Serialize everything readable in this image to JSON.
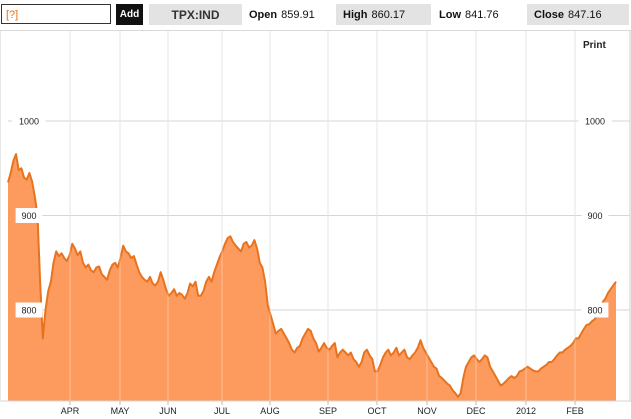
{
  "toolbar": {
    "search_value": "[?]",
    "add_label": "Add",
    "ticker": "TPX:IND",
    "open_label": "Open",
    "open_value": "859.91",
    "high_label": "High",
    "high_value": "860.17",
    "low_label": "Low",
    "low_value": "841.76",
    "close_label": "Close",
    "close_value": "847.16"
  },
  "print_label": "Print",
  "colors": {
    "line": "#e8731f",
    "fill": "#fd9a5e",
    "grid": "#d6d6d6"
  },
  "chart_data": {
    "type": "area",
    "ylim": [
      700,
      1100
    ],
    "y_ticks": [
      1000,
      900,
      800
    ],
    "tick_labels_left": [
      "1000",
      "900",
      "800"
    ],
    "tick_labels_right": [
      "1000",
      "900",
      "800"
    ],
    "x_month_labels": [
      "APR",
      "MAY",
      "JUN",
      "JUL",
      "AUG",
      "SEP",
      "OCT",
      "NOV",
      "DEC",
      "2012",
      "FEB"
    ],
    "grid": true,
    "series": [
      {
        "values": [
          935,
          945,
          958,
          965,
          948,
          950,
          940,
          938,
          945,
          936,
          920,
          900,
          830,
          770,
          800,
          820,
          830,
          850,
          862,
          857,
          860,
          855,
          852,
          858,
          870,
          865,
          858,
          862,
          850,
          845,
          848,
          842,
          840,
          845,
          846,
          838,
          835,
          832,
          842,
          848,
          850,
          845,
          855,
          868,
          862,
          860,
          855,
          857,
          848,
          840,
          835,
          832,
          830,
          835,
          828,
          826,
          830,
          840,
          832,
          822,
          815,
          818,
          822,
          815,
          818,
          816,
          812,
          818,
          828,
          825,
          830,
          815,
          815,
          820,
          830,
          835,
          830,
          840,
          848,
          856,
          862,
          870,
          876,
          878,
          872,
          868,
          865,
          862,
          870,
          872,
          866,
          868,
          874,
          865,
          850,
          845,
          830,
          805,
          795,
          785,
          775,
          778,
          780,
          775,
          770,
          765,
          758,
          755,
          760,
          762,
          770,
          775,
          780,
          778,
          770,
          765,
          756,
          760,
          765,
          760,
          758,
          762,
          765,
          750,
          755,
          758,
          755,
          752,
          755,
          748,
          745,
          740,
          745,
          755,
          758,
          752,
          748,
          735,
          735,
          742,
          750,
          755,
          758,
          752,
          755,
          760,
          752,
          755,
          758,
          750,
          748,
          752,
          755,
          760,
          768,
          760,
          755,
          750,
          745,
          740,
          738,
          730,
          728,
          725,
          722,
          720,
          715,
          712,
          708,
          712,
          728,
          740,
          745,
          750,
          752,
          748,
          745,
          748,
          752,
          750,
          740,
          735,
          730,
          725,
          720,
          722,
          725,
          728,
          730,
          728,
          730,
          735,
          736,
          738,
          740,
          738,
          736,
          735,
          735,
          738,
          740,
          742,
          745,
          745,
          748,
          752,
          755,
          755,
          758,
          760,
          762,
          765,
          770,
          770,
          775,
          780,
          784,
          785,
          788,
          790,
          795,
          800,
          808,
          812,
          818,
          822,
          826,
          830
        ]
      }
    ]
  }
}
